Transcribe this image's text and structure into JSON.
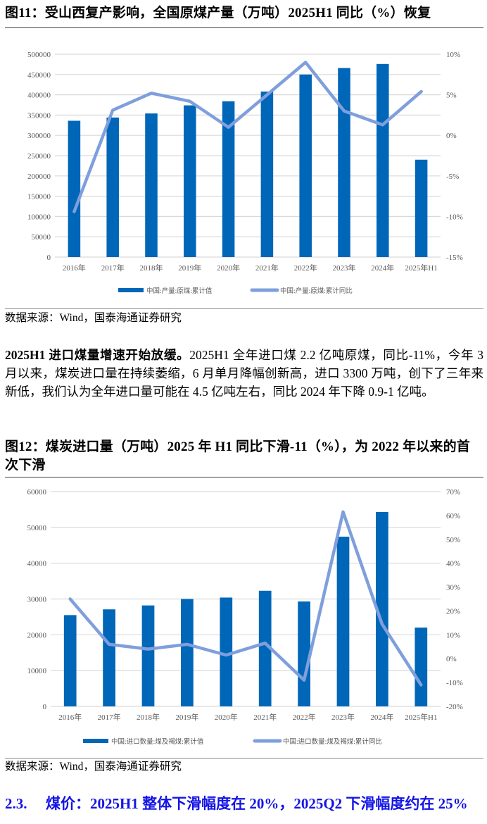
{
  "figure11": {
    "title": "图11：受山西复产影响，全国原煤产量（万吨）2025H1 同比（%）恢复",
    "source": "数据来源：Wind，国泰海通证券研究",
    "legend": [
      "中国:产量:原煤:累计值",
      "中国:产量:原煤:累计同比"
    ]
  },
  "paragraph": {
    "bold_lead": "2025H1 进口煤量增速开始放缓。",
    "body": "2025H1 全年进口煤 2.2 亿吨原煤，同比-11%，今年 3 月以来，煤炭进口量在持续萎缩，6 月单月降幅创新高，进口 3300 万吨，创下了三年来新低，我们认为全年进口量可能在 4.5 亿吨左右，同比 2024 年下降 0.9-1 亿吨。"
  },
  "figure12": {
    "title": "图12：煤炭进口量（万吨）2025 年 H1 同比下滑-11（%），为 2022 年以来的首次下滑",
    "source": "数据来源：Wind，国泰海通证券研究",
    "legend": [
      "中国:进口数量:煤及褐煤:累计值",
      "中国:进口数量:煤及褐煤:累计同比"
    ]
  },
  "section": {
    "number": "2.3.",
    "title": "煤价：2025H1 整体下滑幅度在 20%，2025Q2 下滑幅度约在 25%"
  },
  "colors": {
    "bar": "#0066b8",
    "line": "#7f9fdc",
    "grid": "#d9d9d9",
    "axis_text": "#595959",
    "section_title": "#1414e6"
  },
  "chart_data": [
    {
      "type": "bar+line",
      "title": "受山西复产影响，全国原煤产量（万吨）2025H1 同比（%）恢复",
      "categories": [
        "2016年",
        "2017年",
        "2018年",
        "2019年",
        "2020年",
        "2021年",
        "2022年",
        "2023年",
        "2024年",
        "2025年H1"
      ],
      "series": [
        {
          "name": "中国:产量:原煤:累计值",
          "type": "bar",
          "axis": "left",
          "values": [
            336000,
            344000,
            354000,
            374000,
            384000,
            408000,
            450000,
            466000,
            476000,
            240000
          ]
        },
        {
          "name": "中国:产量:原煤:累计同比",
          "type": "line",
          "axis": "right",
          "values": [
            -9.4,
            3.1,
            5.2,
            4.2,
            1.0,
            5.0,
            9.0,
            3.0,
            1.3,
            5.4
          ]
        }
      ],
      "ylim_left": [
        0,
        500000
      ],
      "yticks_left": [
        "0",
        "50000",
        "100000",
        "150000",
        "200000",
        "250000",
        "300000",
        "350000",
        "400000",
        "450000",
        "500000"
      ],
      "ylim_right": [
        -15,
        10
      ],
      "yticks_right": [
        "-15%",
        "-10%",
        "-5%",
        "0%",
        "5%",
        "10%"
      ],
      "grid": true,
      "legend_position": "bottom"
    },
    {
      "type": "bar+line",
      "title": "煤炭进口量（万吨）2025 年 H1 同比下滑-11（%），为 2022 年以来的首次下滑",
      "categories": [
        "2016年",
        "2017年",
        "2018年",
        "2019年",
        "2020年",
        "2021年",
        "2022年",
        "2023年",
        "2024年",
        "2025年H1"
      ],
      "series": [
        {
          "name": "中国:进口数量:煤及褐煤:累计值",
          "type": "bar",
          "axis": "left",
          "values": [
            25500,
            27100,
            28200,
            30000,
            30400,
            32300,
            29300,
            47400,
            54300,
            22000
          ]
        },
        {
          "name": "中国:进口数量:煤及褐煤:累计同比",
          "type": "line",
          "axis": "right",
          "values": [
            25.0,
            6.0,
            4.0,
            6.0,
            1.5,
            6.5,
            -9.0,
            61.5,
            14.5,
            -11.0
          ]
        }
      ],
      "ylim_left": [
        0,
        60000
      ],
      "yticks_left": [
        "0",
        "10000",
        "20000",
        "30000",
        "40000",
        "50000",
        "60000"
      ],
      "ylim_right": [
        -20,
        70
      ],
      "yticks_right": [
        "-20%",
        "-10%",
        "0%",
        "10%",
        "20%",
        "30%",
        "40%",
        "50%",
        "60%",
        "70%"
      ],
      "grid": true,
      "legend_position": "bottom"
    }
  ]
}
